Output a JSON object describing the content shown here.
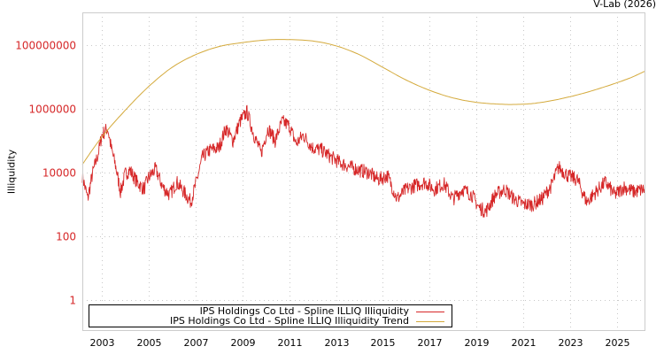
{
  "credit": "V-Lab (2026)",
  "chart_data": {
    "type": "line",
    "title": "",
    "xlabel": "",
    "ylabel": "Illiquidity",
    "yscale": "log",
    "ylim": [
      0.1,
      1500000000
    ],
    "xlim": [
      2002.17,
      2026.17
    ],
    "grid": true,
    "legend_position": "lower-left",
    "y_ticks": [
      {
        "value": 1,
        "label": "1"
      },
      {
        "value": 100,
        "label": "100"
      },
      {
        "value": 10000,
        "label": "10000"
      },
      {
        "value": 1000000,
        "label": "1000000"
      },
      {
        "value": 100000000,
        "label": "100000000"
      }
    ],
    "x_ticks": [
      "2003",
      "2005",
      "2007",
      "2009",
      "2011",
      "2013",
      "2015",
      "2017",
      "2019",
      "2021",
      "2023",
      "2025"
    ],
    "series": [
      {
        "name": "IPS Holdings Co Ltd - Spline ILLIQ Illiquidity",
        "color": "#d62728",
        "x": [
          2002.17,
          2002.4,
          2002.6,
          2002.85,
          2003.0,
          2003.25,
          2003.4,
          2003.6,
          2003.8,
          2004.0,
          2004.2,
          2004.5,
          2004.8,
          2005.0,
          2005.3,
          2005.6,
          2005.9,
          2006.2,
          2006.5,
          2006.8,
          2007.0,
          2007.3,
          2007.6,
          2008.0,
          2008.3,
          2008.6,
          2008.9,
          2009.2,
          2009.5,
          2009.8,
          2010.1,
          2010.4,
          2010.7,
          2011.0,
          2011.3,
          2011.6,
          2012.0,
          2012.4,
          2012.8,
          2013.2,
          2013.6,
          2014.0,
          2014.4,
          2014.8,
          2015.2,
          2015.6,
          2016.0,
          2016.4,
          2016.8,
          2017.2,
          2017.6,
          2018.0,
          2018.4,
          2018.8,
          2019.1,
          2019.4,
          2019.8,
          2020.2,
          2020.6,
          2021.0,
          2021.4,
          2021.8,
          2022.2,
          2022.5,
          2022.9,
          2023.3,
          2023.7,
          2024.1,
          2024.5,
          2024.9,
          2025.3,
          2025.7,
          2026.17
        ],
        "values": [
          8000,
          1500,
          9000,
          40000,
          150000,
          250000,
          60000,
          15000,
          2500,
          9000,
          12000,
          5000,
          3000,
          7000,
          13000,
          3500,
          2000,
          5000,
          2500,
          1200,
          4000,
          30000,
          50000,
          60000,
          250000,
          100000,
          400000,
          800000,
          150000,
          40000,
          250000,
          100000,
          400000,
          300000,
          80000,
          150000,
          60000,
          50000,
          30000,
          20000,
          15000,
          12000,
          10000,
          6000,
          8000,
          1500,
          3000,
          4000,
          5000,
          3000,
          4500,
          1500,
          3000,
          2000,
          800,
          600,
          2000,
          3000,
          1500,
          1000,
          1000,
          1500,
          4000,
          15000,
          8000,
          6000,
          1200,
          2500,
          5000,
          2000,
          3500,
          2500,
          3000
        ]
      },
      {
        "name": "IPS Holdings Co Ltd - Spline ILLIQ Illiquidity Trend",
        "color": "#d4aa3c",
        "x": [
          2002.17,
          2003.0,
          2004.0,
          2005.0,
          2006.0,
          2007.0,
          2008.0,
          2009.0,
          2010.0,
          2010.9,
          2012.0,
          2013.0,
          2014.0,
          2015.0,
          2016.0,
          2017.0,
          2018.0,
          2019.0,
          2020.0,
          2020.7,
          2021.5,
          2022.5,
          2023.5,
          2024.5,
          2025.5,
          2026.17
        ],
        "values": [
          18000,
          130000,
          900000,
          5000000,
          20000000,
          50000000,
          90000000,
          120000000,
          145000000,
          150000000,
          135000000,
          95000000,
          50000000,
          20000000,
          8000000,
          3800000,
          2200000,
          1600000,
          1400000,
          1380000,
          1500000,
          2000000,
          3000000,
          5000000,
          9000000,
          15000000
        ]
      }
    ]
  },
  "legend": {
    "items": [
      {
        "label": "IPS Holdings Co Ltd - Spline ILLIQ Illiquidity",
        "color": "#d62728"
      },
      {
        "label": "IPS Holdings Co Ltd - Spline ILLIQ Illiquidity Trend",
        "color": "#d4aa3c"
      }
    ]
  }
}
